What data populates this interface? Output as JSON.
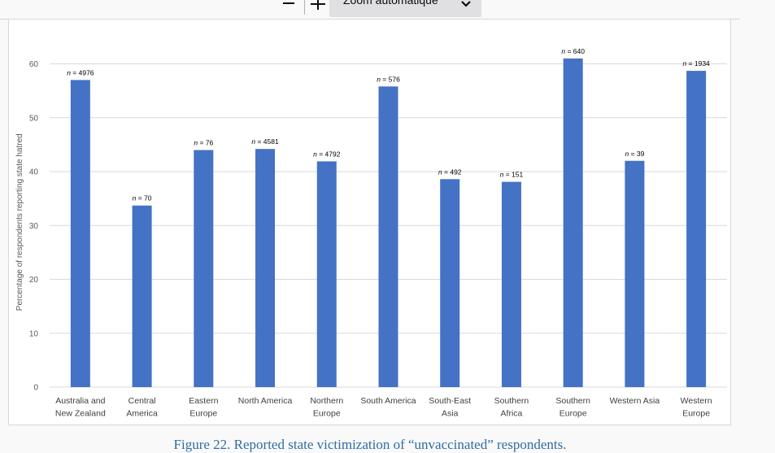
{
  "toolbar": {
    "zoom_out_label": "−",
    "zoom_in_label": "+",
    "zoom_value": "Zoom automatique"
  },
  "caption": "Figure 22. Reported state victimization of “unvaccinated” respondents.",
  "chart_data": {
    "type": "bar",
    "title": "",
    "xlabel": "",
    "ylabel": "Percentage of respondents reporting state hatred",
    "ylim": [
      0,
      65
    ],
    "yticks": [
      0,
      10,
      20,
      30,
      40,
      50,
      60
    ],
    "grid": true,
    "bar_color": "#4472c4",
    "categories": [
      [
        "Australia and",
        "New Zealand"
      ],
      [
        "Central",
        "America"
      ],
      [
        "Eastern",
        "Europe"
      ],
      [
        "North America"
      ],
      [
        "Northern",
        "Europe"
      ],
      [
        "South America"
      ],
      [
        "South-East",
        "Asia"
      ],
      [
        "Southern",
        "Africa"
      ],
      [
        "Southern",
        "Europe"
      ],
      [
        "Western Asia"
      ],
      [
        "Western",
        "Europe"
      ]
    ],
    "values": [
      57,
      33.7,
      44,
      44.2,
      41.9,
      55.8,
      38.6,
      38.1,
      61,
      42,
      58.7
    ],
    "labels": [
      "n = 4976",
      "n = 70",
      "n = 76",
      "n = 4581",
      "n = 4792",
      "n = 576",
      "n = 492",
      "n = 151",
      "n = 640",
      "n = 39",
      "n = 1934"
    ]
  }
}
